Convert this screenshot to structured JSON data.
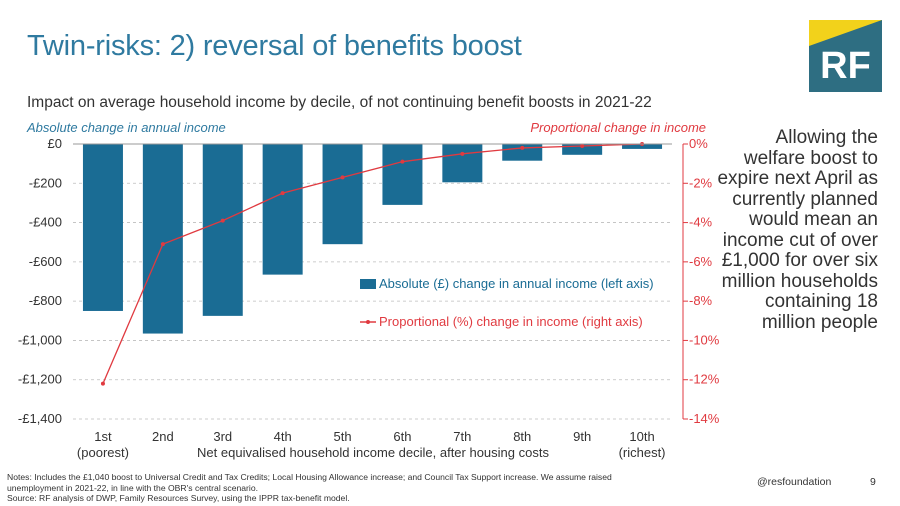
{
  "header": {
    "title": "Twin-risks: 2) reversal of benefits boost",
    "logo_text": "RF",
    "logo_colors": {
      "background": "#2e6e82",
      "accent": "#f2d21b"
    }
  },
  "colors": {
    "bars": "#1a6c94",
    "line": "#e03a40",
    "title": "#2f7aa0",
    "grid": "#bdbdbd"
  },
  "sidebar": {
    "text": "Allowing the welfare boost to expire next April as currently planned would mean an income cut of over £1,000 for over six million households containing 18 million people"
  },
  "chart_data": {
    "type": "bar",
    "title": "Impact on average household income by decile, of not continuing benefit boosts in 2021-22",
    "categories_line1": [
      "1st",
      "2nd",
      "3rd",
      "4th",
      "5th",
      "6th",
      "7th",
      "8th",
      "9th",
      "10th"
    ],
    "categories_line2": [
      "(poorest)",
      "",
      "",
      "",
      "",
      "",
      "",
      "",
      "",
      "(richest)"
    ],
    "xlabel": "Net equivalised household income decile, after housing costs",
    "ylabel_left": "Absolute change in annual income",
    "ylabel_right": "Proportional change in income",
    "y_left_ticks": [
      "£0",
      "-£200",
      "-£400",
      "-£600",
      "-£800",
      "-£1,000",
      "-£1,200",
      "-£1,400"
    ],
    "y_right_ticks": [
      "0%",
      "-2%",
      "-4%",
      "-6%",
      "-8%",
      "-10%",
      "-12%",
      "-14%"
    ],
    "ylim_left": [
      -1400,
      0
    ],
    "ylim_right": [
      -14,
      0
    ],
    "grid": "horizontal dashed",
    "legend_placement": "center-right",
    "series": [
      {
        "name": "Absolute (£) change in annual income (left axis)",
        "kind": "bar",
        "axis": "left",
        "values": [
          -850,
          -965,
          -875,
          -665,
          -510,
          -310,
          -195,
          -85,
          -55,
          -25
        ]
      },
      {
        "name": "Proportional (%) change in income (right axis)",
        "kind": "line",
        "axis": "right",
        "values": [
          -12.2,
          -5.1,
          -3.9,
          -2.5,
          -1.7,
          -0.9,
          -0.5,
          -0.2,
          -0.1,
          0.0
        ]
      }
    ]
  },
  "footer": {
    "notes_line1": "Notes: Includes the £1,040 boost to Universal Credit and Tax Credits; Local Housing Allowance increase; and Council Tax Support increase. We assume raised",
    "notes_line2": "unemployment in 2021-22, in line with the OBR's central scenario.",
    "source": "Source: RF analysis of DWP, Family Resources Survey, using the IPPR tax-benefit model.",
    "handle": "@resfoundation",
    "page_number": "9"
  }
}
